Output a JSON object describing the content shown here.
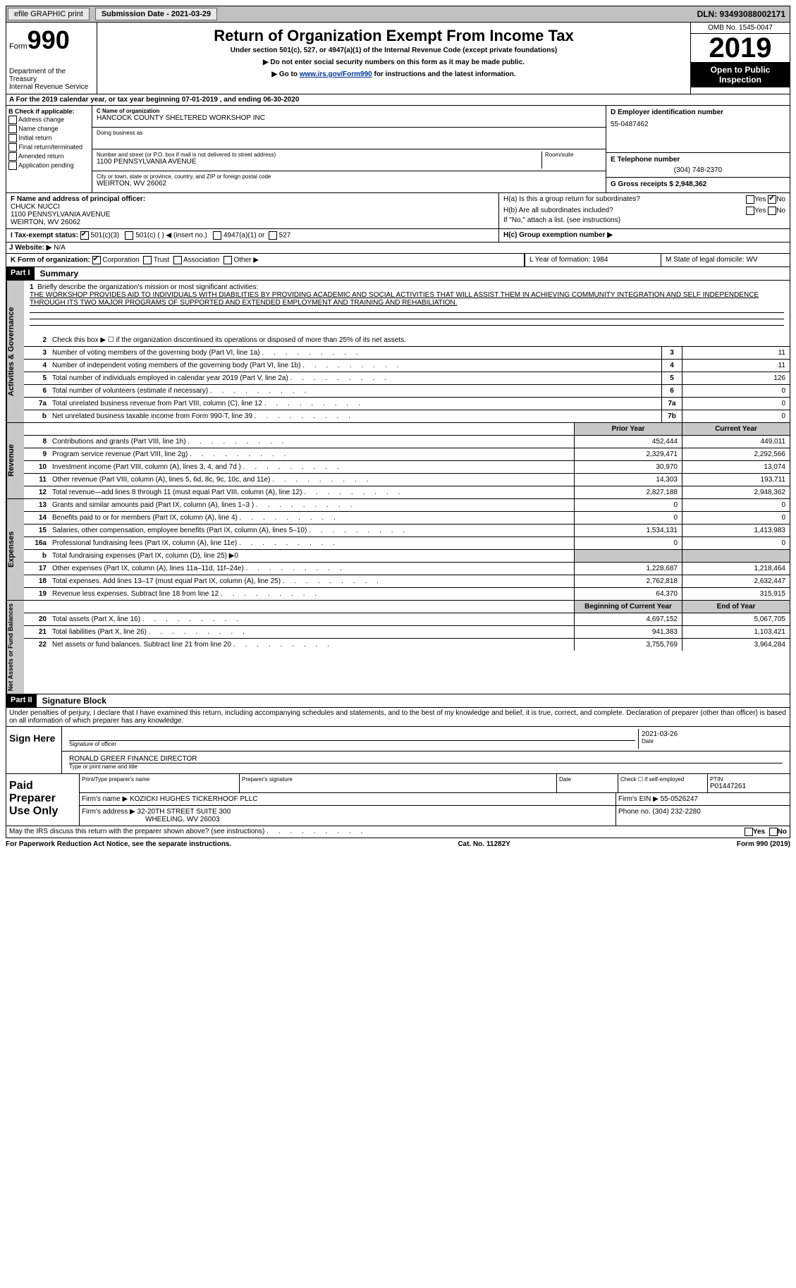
{
  "topbar": {
    "efile": "efile GRAPHIC print",
    "sub_label": "Submission Date - 2021-03-29",
    "dln": "DLN: 93493088002171"
  },
  "header": {
    "form_label": "Form",
    "form_num": "990",
    "dept1": "Department of the Treasury",
    "dept2": "Internal Revenue Service",
    "title": "Return of Organization Exempt From Income Tax",
    "sub1": "Under section 501(c), 527, or 4947(a)(1) of the Internal Revenue Code (except private foundations)",
    "sub2": "▶ Do not enter social security numbers on this form as it may be made public.",
    "sub3a": "▶ Go to ",
    "sub3_link": "www.irs.gov/Form990",
    "sub3b": " for instructions and the latest information.",
    "omb": "OMB No. 1545-0047",
    "year": "2019",
    "open": "Open to Public Inspection"
  },
  "rowA": "A For the 2019 calendar year, or tax year beginning 07-01-2019    , and ending 06-30-2020",
  "colB": {
    "title": "B Check if applicable:",
    "addr": "Address change",
    "name": "Name change",
    "init": "Initial return",
    "final": "Final return/terminated",
    "amend": "Amended return",
    "app": "Application pending"
  },
  "colC": {
    "c_label": "C Name of organization",
    "org": "HANCOCK COUNTY SHELTERED WORKSHOP INC",
    "dba": "Doing business as",
    "addr_label": "Number and street (or P.O. box if mail is not delivered to street address)",
    "room": "Room/suite",
    "addr": "1100 PENNSYLVANIA AVENUE",
    "city_label": "City or town, state or province, country, and ZIP or foreign postal code",
    "city": "WEIRTON, WV  26062"
  },
  "colD": {
    "d_label": "D Employer identification number",
    "ein": "55-0487462",
    "e_label": "E Telephone number",
    "phone": "(304) 748-2370",
    "g_label": "G Gross receipts $ 2,948,362"
  },
  "rowF": {
    "f_label": "F  Name and address of principal officer:",
    "name": "CHUCK NUCCI",
    "addr1": "1100 PENNSYLVANIA AVENUE",
    "addr2": "WEIRTON, WV  26062",
    "ha": "H(a)  Is this a group return for subordinates?",
    "hb": "H(b)  Are all subordinates included?",
    "hb_note": "If \"No,\" attach a list. (see instructions)",
    "yes": "Yes",
    "no": "No"
  },
  "rowI": {
    "label": "I   Tax-exempt status:",
    "o1": "501(c)(3)",
    "o2": "501(c) (  ) ◀ (insert no.)",
    "o3": "4947(a)(1) or",
    "o4": "527",
    "hc": "H(c)  Group exemption number ▶"
  },
  "rowJ": {
    "label": "J   Website: ▶",
    "val": "N/A"
  },
  "rowK": {
    "label": "K Form of organization:",
    "corp": "Corporation",
    "trust": "Trust",
    "assoc": "Association",
    "other": "Other ▶",
    "l": "L Year of formation: 1984",
    "m": "M State of legal domicile: WV"
  },
  "part1": {
    "header": "Part I",
    "title": "Summary",
    "line1": "Briefly describe the organization's mission or most significant activities:",
    "mission": "THE WORKSHOP PROVIDES AID TO INDIVIDUALS WITH DIABILITIES BY PROVIDING ACADEMIC AND SOCIAL ACTIVITIES THAT WILL ASSIST THEM IN ACHIEVING COMMUNITY INTEGRATION AND SELF INDEPENDENCE THROUGH ITS TWO MAJOR PROGRAMS OF SUPPORTED AND EXTENDED EMPLOYMENT AND TRAINING AND REHABILIATION.",
    "line2": "Check this box ▶ ☐  if the organization discontinued its operations or disposed of more than 25% of its net assets.",
    "lines": [
      {
        "n": "3",
        "d": "Number of voting members of the governing body (Part VI, line 1a)",
        "b": "3",
        "v": "11"
      },
      {
        "n": "4",
        "d": "Number of independent voting members of the governing body (Part VI, line 1b)",
        "b": "4",
        "v": "11"
      },
      {
        "n": "5",
        "d": "Total number of individuals employed in calendar year 2019 (Part V, line 2a)",
        "b": "5",
        "v": "126"
      },
      {
        "n": "6",
        "d": "Total number of volunteers (estimate if necessary)",
        "b": "6",
        "v": "0"
      },
      {
        "n": "7a",
        "d": "Total unrelated business revenue from Part VIII, column (C), line 12",
        "b": "7a",
        "v": "0"
      },
      {
        "n": "b",
        "d": "Net unrelated business taxable income from Form 990-T, line 39",
        "b": "7b",
        "v": "0"
      }
    ]
  },
  "revenue": {
    "side": "Revenue",
    "h1": "Prior Year",
    "h2": "Current Year",
    "rows": [
      {
        "n": "8",
        "d": "Contributions and grants (Part VIII, line 1h)",
        "v1": "452,444",
        "v2": "449,011"
      },
      {
        "n": "9",
        "d": "Program service revenue (Part VIII, line 2g)",
        "v1": "2,329,471",
        "v2": "2,292,566"
      },
      {
        "n": "10",
        "d": "Investment income (Part VIII, column (A), lines 3, 4, and 7d )",
        "v1": "30,970",
        "v2": "13,074"
      },
      {
        "n": "11",
        "d": "Other revenue (Part VIII, column (A), lines 5, 6d, 8c, 9c, 10c, and 11e)",
        "v1": "14,303",
        "v2": "193,711"
      },
      {
        "n": "12",
        "d": "Total revenue—add lines 8 through 11 (must equal Part VIII, column (A), line 12)",
        "v1": "2,827,188",
        "v2": "2,948,362"
      }
    ]
  },
  "expenses": {
    "side": "Expenses",
    "rows": [
      {
        "n": "13",
        "d": "Grants and similar amounts paid (Part IX, column (A), lines 1–3 )",
        "v1": "0",
        "v2": "0"
      },
      {
        "n": "14",
        "d": "Benefits paid to or for members (Part IX, column (A), line 4)",
        "v1": "0",
        "v2": "0"
      },
      {
        "n": "15",
        "d": "Salaries, other compensation, employee benefits (Part IX, column (A), lines 5–10)",
        "v1": "1,534,131",
        "v2": "1,413,983"
      },
      {
        "n": "16a",
        "d": "Professional fundraising fees (Part IX, column (A), line 11e)",
        "v1": "0",
        "v2": "0"
      },
      {
        "n": "b",
        "d": "Total fundraising expenses (Part IX, column (D), line 25) ▶0",
        "v1": "",
        "v2": "",
        "shaded": true
      },
      {
        "n": "17",
        "d": "Other expenses (Part IX, column (A), lines 11a–11d, 11f–24e)",
        "v1": "1,228,687",
        "v2": "1,218,464"
      },
      {
        "n": "18",
        "d": "Total expenses. Add lines 13–17 (must equal Part IX, column (A), line 25)",
        "v1": "2,762,818",
        "v2": "2,632,447"
      },
      {
        "n": "19",
        "d": "Revenue less expenses. Subtract line 18 from line 12",
        "v1": "64,370",
        "v2": "315,915"
      }
    ]
  },
  "netassets": {
    "side": "Net Assets or Fund Balances",
    "h1": "Beginning of Current Year",
    "h2": "End of Year",
    "rows": [
      {
        "n": "20",
        "d": "Total assets (Part X, line 16)",
        "v1": "4,697,152",
        "v2": "5,067,705"
      },
      {
        "n": "21",
        "d": "Total liabilities (Part X, line 26)",
        "v1": "941,383",
        "v2": "1,103,421"
      },
      {
        "n": "22",
        "d": "Net assets or fund balances. Subtract line 21 from line 20",
        "v1": "3,755,769",
        "v2": "3,964,284"
      }
    ]
  },
  "part2": {
    "header": "Part II",
    "title": "Signature Block",
    "decl": "Under penalties of perjury, I declare that I have examined this return, including accompanying schedules and statements, and to the best of my knowledge and belief, it is true, correct, and complete. Declaration of preparer (other than officer) is based on all information of which preparer has any knowledge."
  },
  "sign": {
    "label": "Sign Here",
    "sig": "Signature of officer",
    "date": "2021-03-26",
    "date_label": "Date",
    "name": "RONALD GREER FINANCE DIRECTOR",
    "name_label": "Type or print name and title"
  },
  "paid": {
    "label": "Paid Preparer Use Only",
    "c1": "Print/Type preparer's name",
    "c2": "Preparer's signature",
    "c3": "Date",
    "c4a": "Check ☐ if self-employed",
    "c4b": "PTIN",
    "ptin": "P01447261",
    "firm_label": "Firm's name    ▶",
    "firm": "KOZICKI HUGHES TICKERHOOF PLLC",
    "ein_label": "Firm's EIN ▶",
    "ein": "55-0526247",
    "addr_label": "Firm's address ▶",
    "addr1": "32-20TH STREET SUITE 300",
    "addr2": "WHEELING, WV  26003",
    "phone_label": "Phone no.",
    "phone": "(304) 232-2280"
  },
  "discuss": "May the IRS discuss this return with the preparer shown above? (see instructions)",
  "footer": {
    "left": "For Paperwork Reduction Act Notice, see the separate instructions.",
    "mid": "Cat. No. 11282Y",
    "right": "Form 990 (2019)"
  }
}
